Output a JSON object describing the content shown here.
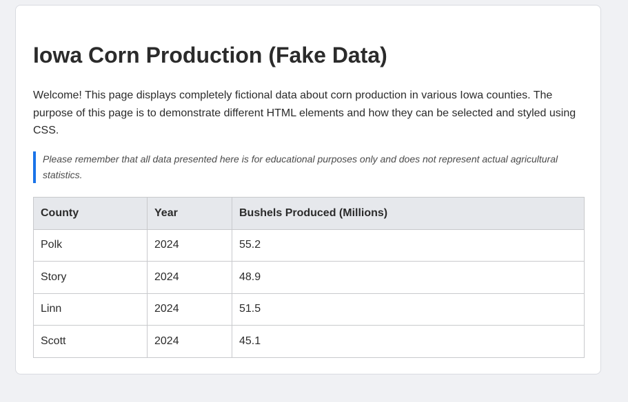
{
  "page": {
    "title": "Iowa Corn Production (Fake Data)",
    "intro": "Welcome! This page displays completely fictional data about corn production in various Iowa counties. The purpose of this page is to demonstrate different HTML elements and how they can be selected and styled using CSS.",
    "note": "Please remember that all data presented here is for educational purposes only and does not represent actual agricultural statistics."
  },
  "table": {
    "headers": {
      "county": "County",
      "year": "Year",
      "bushels": "Bushels Produced (Millions)"
    },
    "rows": [
      {
        "county": "Polk",
        "year": "2024",
        "bushels": "55.2"
      },
      {
        "county": "Story",
        "year": "2024",
        "bushels": "48.9"
      },
      {
        "county": "Linn",
        "year": "2024",
        "bushels": "51.5"
      },
      {
        "county": "Scott",
        "year": "2024",
        "bushels": "45.1"
      }
    ]
  },
  "colors": {
    "accent": "#1a73e8",
    "header_bg": "#e6e8ec",
    "page_bg": "#f0f1f4"
  }
}
